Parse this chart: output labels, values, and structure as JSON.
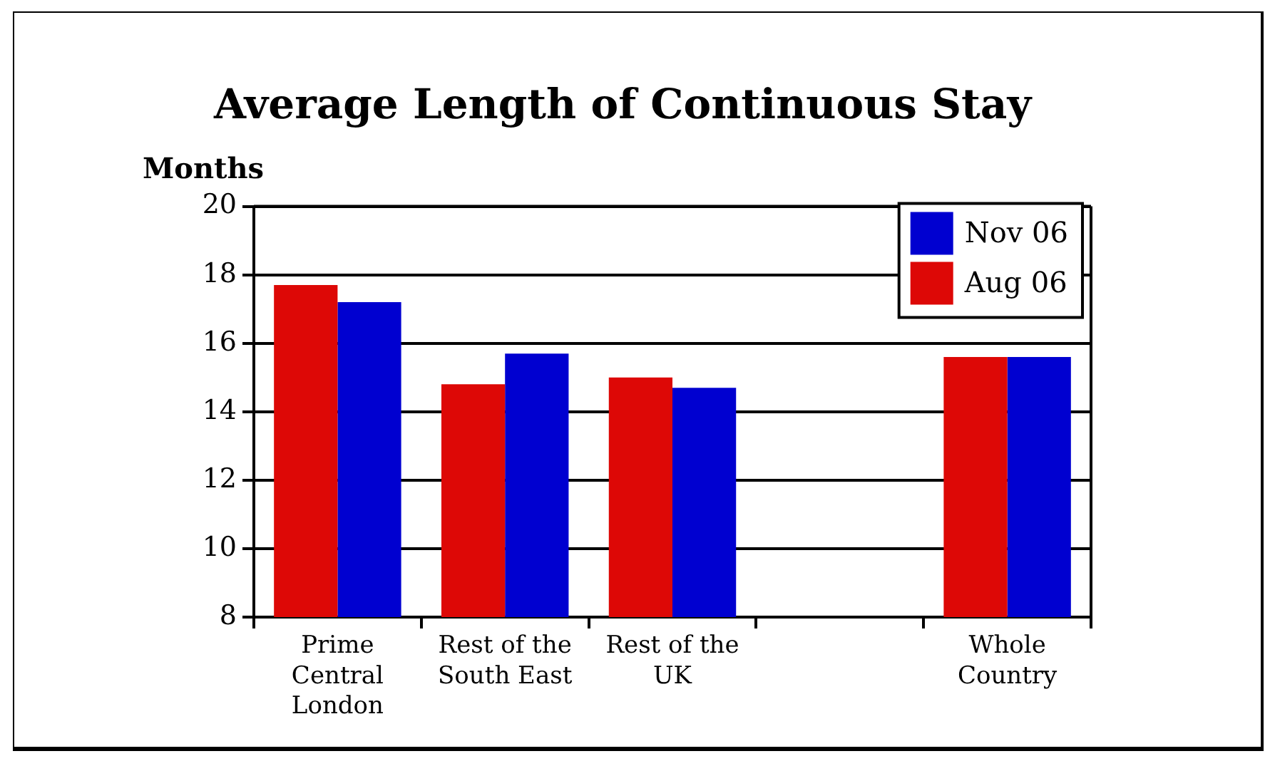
{
  "chart_data": {
    "type": "bar",
    "title": "Average Length of Continuous Stay",
    "ylabel": "Months",
    "categories": [
      "Prime Central London",
      "Rest of the South East",
      "Rest of the UK",
      null,
      "Whole Country"
    ],
    "series": [
      {
        "name": "Aug 06",
        "color": "#dd0806",
        "values": [
          17.7,
          14.8,
          15.0,
          null,
          15.6
        ]
      },
      {
        "name": "Nov 06",
        "color": "#0000d0",
        "values": [
          17.2,
          15.7,
          14.7,
          null,
          15.6
        ]
      }
    ],
    "ylim": [
      8,
      20
    ],
    "yticks": [
      8,
      10,
      12,
      14,
      16,
      18,
      20
    ],
    "grid": "y",
    "legend": "top right"
  }
}
